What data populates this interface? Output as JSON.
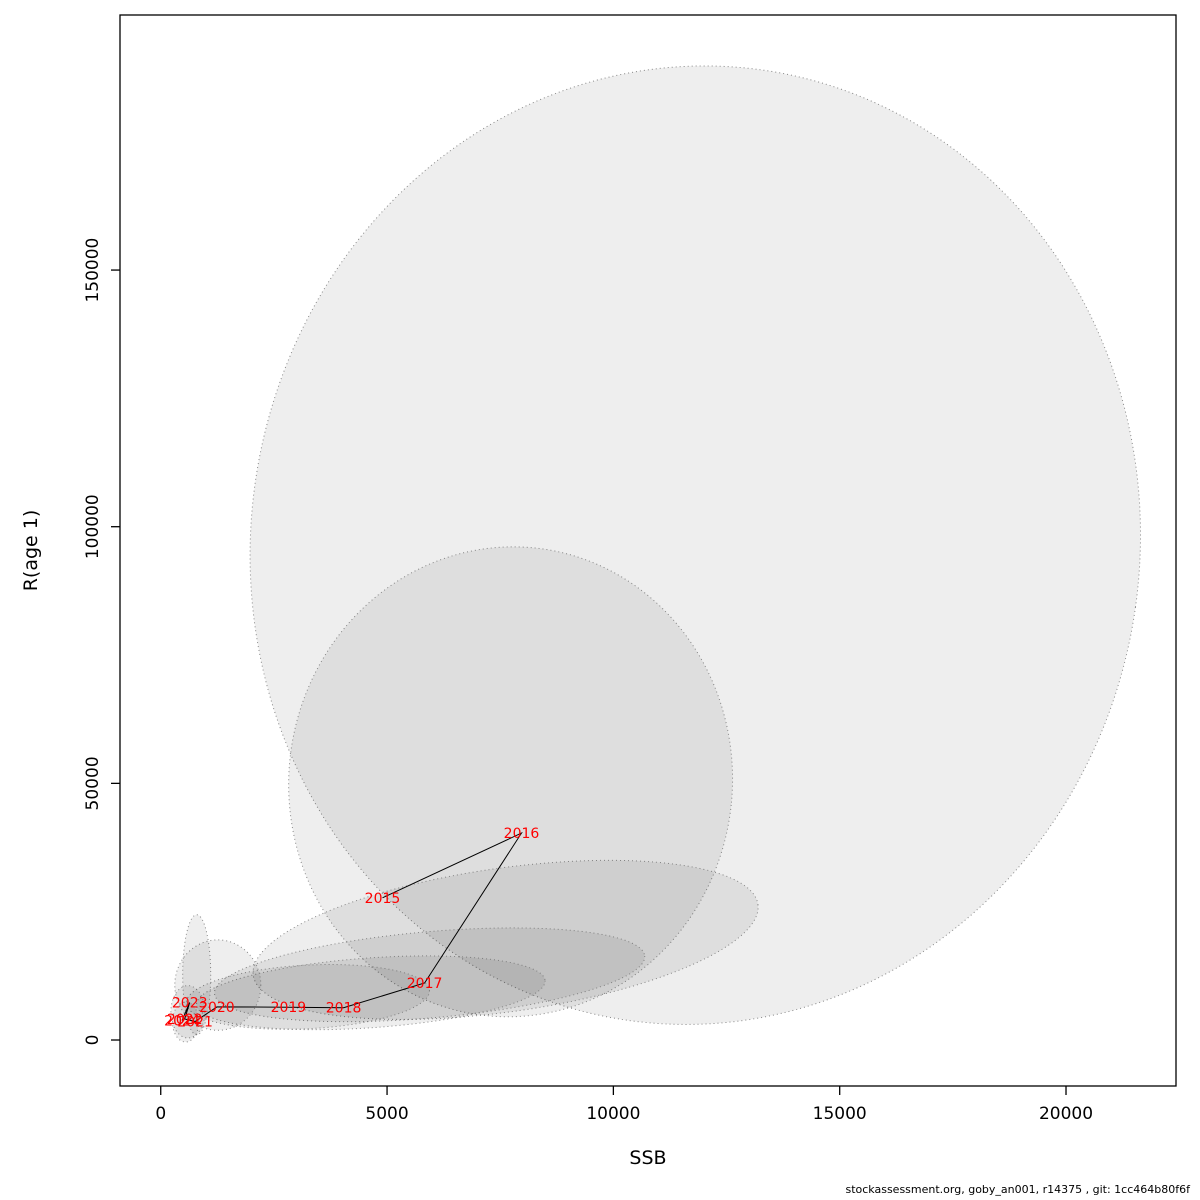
{
  "page": {
    "background": "#ffffff"
  },
  "footer": {
    "text": "stockassessment.org, goby_an001, r14375 , git: 1cc464b80f6f"
  },
  "chart_data": {
    "type": "scatter",
    "title": "",
    "xlabel": "SSB",
    "ylabel": "R(age 1)",
    "xlim": [
      -900,
      22430
    ],
    "ylim": [
      -8960,
      199690
    ],
    "xticks": [
      0,
      5000,
      10000,
      15000,
      20000
    ],
    "yticks": [
      0,
      50000,
      100000,
      150000
    ],
    "grid": false,
    "legend": "none",
    "point_label_color": "#ff0000",
    "trajectory_color": "#000000",
    "ellipse_fill": "rgba(0,0,0,0.065)",
    "ellipse_stroke": "rgba(115,115,115,0.85)",
    "points": [
      {
        "year": "2015",
        "ssb": 4900,
        "r": 27700
      },
      {
        "year": "2016",
        "ssb": 7970,
        "r": 40300
      },
      {
        "year": "2017",
        "ssb": 5830,
        "r": 11100
      },
      {
        "year": "2018",
        "ssb": 4040,
        "r": 6300
      },
      {
        "year": "2019",
        "ssb": 2820,
        "r": 6400
      },
      {
        "year": "2020",
        "ssb": 1240,
        "r": 6450
      },
      {
        "year": "2021",
        "ssb": 760,
        "r": 3600
      },
      {
        "year": "2022",
        "ssb": 530,
        "r": 4100
      },
      {
        "year": "2023",
        "ssb": 640,
        "r": 7300
      },
      {
        "year": "2024",
        "ssb": 470,
        "r": 3800
      }
    ],
    "confidence_ellipses": [
      {
        "year": "2016",
        "cx": 11810,
        "cy": 96400,
        "rx": 9820,
        "ry": 93500,
        "rot": 8
      },
      {
        "year": "2015",
        "cx": 7730,
        "cy": 50300,
        "rx": 4900,
        "ry": 45800,
        "rot": 6
      },
      {
        "year": "2017",
        "cx": 7620,
        "cy": 19500,
        "rx": 5630,
        "ry": 14000,
        "rot": -8
      },
      {
        "year": "2018",
        "cx": 5940,
        "cy": 12700,
        "rx": 4770,
        "ry": 8400,
        "rot": -5
      },
      {
        "year": "2019",
        "cx": 4640,
        "cy": 9200,
        "rx": 3860,
        "ry": 6800,
        "rot": -4
      },
      {
        "year": "2020",
        "cx": 3250,
        "cy": 8400,
        "rx": 2690,
        "ry": 6200,
        "rot": -3
      },
      {
        "year": "2021",
        "cx": 1260,
        "cy": 10700,
        "rx": 950,
        "ry": 8800,
        "rot": 0
      },
      {
        "year": "2023",
        "cx": 795,
        "cy": 12700,
        "rx": 310,
        "ry": 11700,
        "rot": 0
      },
      {
        "year": "2022",
        "cx": 600,
        "cy": 5500,
        "rx": 375,
        "ry": 5100,
        "rot": 0
      },
      {
        "year": "2024",
        "cx": 550,
        "cy": 3500,
        "rx": 290,
        "ry": 3900,
        "rot": 0
      }
    ]
  }
}
